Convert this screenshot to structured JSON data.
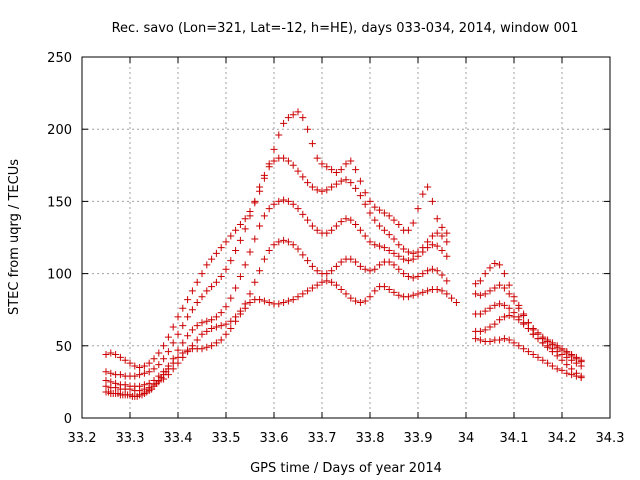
{
  "chart_data": {
    "type": "scatter",
    "title": "Rec. savo (Lon=321, Lat=-12, h=HE), days 033-034, 2014, window 001",
    "xlabel": "GPS time / Days of year 2014",
    "ylabel": "STEC from uqrg / TECUs",
    "xlim": [
      33.2,
      34.3
    ],
    "ylim": [
      0,
      250
    ],
    "x_ticks": [
      33.2,
      33.3,
      33.4,
      33.5,
      33.6,
      33.7,
      33.8,
      33.9,
      34.0,
      34.1,
      34.2,
      34.3
    ],
    "x_tick_labels": [
      "33.2",
      "33.3",
      "33.4",
      "33.5",
      "33.6",
      "33.7",
      "33.8",
      "33.9",
      "34",
      "34.1",
      "34.2",
      "34.3"
    ],
    "y_ticks": [
      0,
      50,
      100,
      150,
      200,
      250
    ],
    "y_tick_labels": [
      "0",
      "50",
      "100",
      "150",
      "200",
      "250"
    ],
    "grid": true,
    "marker": "+",
    "color": "#cc0000",
    "series": [
      {
        "x": [
          33.25,
          33.255,
          33.26,
          33.265,
          33.27,
          33.275,
          33.28,
          33.285,
          33.29,
          33.295,
          33.3,
          33.305,
          33.31,
          33.315,
          33.32,
          33.325,
          33.33,
          33.335,
          33.34,
          33.345,
          33.35,
          33.355,
          33.36,
          33.365,
          33.37,
          33.375,
          33.38,
          33.39,
          33.4,
          33.41,
          33.42,
          33.43,
          33.44,
          33.45,
          33.46,
          33.47,
          33.48,
          33.49,
          33.5,
          33.51,
          33.52,
          33.53,
          33.54,
          33.55,
          33.56,
          33.57,
          33.58,
          33.59,
          33.6,
          33.61,
          33.62,
          33.63,
          33.64,
          33.65,
          33.66,
          33.67,
          33.68,
          33.69,
          33.7,
          33.71,
          33.72,
          33.73,
          33.74,
          33.75,
          33.76,
          33.77,
          33.78,
          33.79,
          33.8,
          33.81,
          33.82,
          33.83,
          33.84,
          33.85,
          33.86,
          33.87,
          33.88,
          33.89,
          33.9,
          33.91,
          33.92,
          33.93,
          33.94,
          33.95,
          33.96,
          33.97,
          33.98,
          34.02,
          34.03,
          34.04,
          34.05,
          34.06,
          34.07,
          34.08,
          34.09,
          34.1,
          34.11,
          34.12,
          34.13,
          34.14,
          34.15,
          34.16,
          34.17,
          34.18,
          34.19,
          34.2,
          34.21,
          34.22,
          34.23,
          34.24
        ],
        "y": [
          18,
          18,
          17,
          17,
          17,
          17,
          16,
          16,
          16,
          16,
          16,
          15,
          15,
          15,
          16,
          16,
          17,
          18,
          19,
          20,
          22,
          24,
          26,
          28,
          30,
          32,
          34,
          38,
          42,
          45,
          47,
          48,
          48,
          48,
          49,
          50,
          52,
          54,
          58,
          62,
          67,
          72,
          76,
          80,
          82,
          82,
          81,
          80,
          79,
          79,
          80,
          81,
          82,
          84,
          86,
          88,
          90,
          92,
          94,
          95,
          94,
          92,
          89,
          86,
          83,
          81,
          80,
          81,
          84,
          88,
          91,
          91,
          89,
          87,
          85,
          84,
          84,
          85,
          86,
          87,
          88,
          89,
          89,
          88,
          86,
          83,
          80,
          55,
          54,
          53,
          53,
          54,
          54,
          55,
          54,
          52,
          50,
          48,
          46,
          44,
          42,
          40,
          38,
          36,
          34,
          33,
          31,
          30,
          29,
          28
        ]
      },
      {
        "x": [
          33.25,
          33.26,
          33.27,
          33.28,
          33.29,
          33.3,
          33.31,
          33.32,
          33.33,
          33.34,
          33.35,
          33.36,
          33.37,
          33.38,
          33.39,
          33.4,
          33.41,
          33.42,
          33.43,
          33.44,
          33.45,
          33.46,
          33.47,
          33.48,
          33.49,
          33.5,
          33.51,
          33.52,
          33.53,
          33.54,
          33.55,
          33.56,
          33.57,
          33.58,
          33.59,
          33.6,
          33.61,
          33.62,
          33.63,
          33.64,
          33.65,
          33.66,
          33.67,
          33.68,
          33.69,
          33.7,
          33.71,
          33.72,
          33.73,
          33.74,
          33.75,
          33.76,
          33.77,
          33.78,
          33.79,
          33.8,
          33.81,
          33.82,
          33.83,
          33.84,
          33.85,
          33.86,
          33.87,
          33.88,
          33.89,
          33.9,
          33.91,
          33.92,
          33.93,
          33.94,
          33.95,
          33.96,
          34.02,
          34.03,
          34.04,
          34.05,
          34.06,
          34.07,
          34.08,
          34.09,
          34.1,
          34.11,
          34.12,
          34.13,
          34.14,
          34.15,
          34.16,
          34.17,
          34.18,
          34.19,
          34.2,
          34.21,
          34.22,
          34.23,
          34.24
        ],
        "y": [
          22,
          21,
          21,
          20,
          20,
          20,
          19,
          19,
          20,
          21,
          23,
          25,
          27,
          30,
          34,
          38,
          42,
          46,
          50,
          54,
          58,
          60,
          62,
          63,
          64,
          65,
          67,
          70,
          74,
          79,
          86,
          94,
          102,
          110,
          116,
          120,
          122,
          123,
          122,
          120,
          117,
          113,
          109,
          105,
          102,
          100,
          100,
          102,
          105,
          108,
          110,
          110,
          108,
          105,
          103,
          102,
          103,
          106,
          108,
          108,
          106,
          103,
          100,
          98,
          97,
          98,
          100,
          102,
          103,
          102,
          99,
          95,
          60,
          60,
          61,
          63,
          65,
          68,
          70,
          71,
          70,
          68,
          65,
          62,
          58,
          55,
          52,
          49,
          46,
          43,
          40,
          37,
          34,
          31,
          29
        ]
      },
      {
        "x": [
          33.25,
          33.26,
          33.27,
          33.28,
          33.29,
          33.3,
          33.31,
          33.32,
          33.33,
          33.34,
          33.35,
          33.36,
          33.37,
          33.38,
          33.39,
          33.4,
          33.41,
          33.42,
          33.43,
          33.44,
          33.45,
          33.46,
          33.47,
          33.48,
          33.49,
          33.5,
          33.51,
          33.52,
          33.53,
          33.54,
          33.55,
          33.56,
          33.57,
          33.58,
          33.59,
          33.6,
          33.61,
          33.62,
          33.63,
          33.64,
          33.65,
          33.66,
          33.67,
          33.68,
          33.69,
          33.7,
          33.71,
          33.72,
          33.73,
          33.74,
          33.75,
          33.76,
          33.77,
          33.78,
          33.79,
          33.8,
          33.81,
          33.82,
          33.83,
          33.84,
          33.85,
          33.86,
          33.87,
          33.88,
          33.89,
          33.9,
          33.91,
          33.92,
          33.93,
          33.94,
          33.95,
          33.96,
          34.02,
          34.03,
          34.04,
          34.05,
          34.06,
          34.07,
          34.08,
          34.09,
          34.1,
          34.11,
          34.12,
          34.13,
          34.14,
          34.15,
          34.16,
          34.17,
          34.18,
          34.19,
          34.2,
          34.21,
          34.22,
          34.23,
          34.24
        ],
        "y": [
          26,
          25,
          24,
          23,
          23,
          22,
          22,
          22,
          23,
          24,
          26,
          29,
          32,
          36,
          41,
          47,
          52,
          57,
          61,
          64,
          66,
          67,
          68,
          70,
          73,
          77,
          83,
          90,
          98,
          106,
          115,
          124,
          133,
          140,
          145,
          148,
          150,
          151,
          150,
          148,
          145,
          141,
          137,
          133,
          130,
          128,
          128,
          130,
          133,
          136,
          138,
          137,
          134,
          130,
          126,
          122,
          120,
          119,
          118,
          116,
          114,
          112,
          110,
          109,
          110,
          112,
          115,
          118,
          120,
          119,
          116,
          112,
          72,
          72,
          74,
          76,
          78,
          79,
          78,
          76,
          73,
          70,
          66,
          62,
          58,
          55,
          52,
          50,
          48,
          46,
          44,
          42,
          40,
          38,
          36
        ]
      },
      {
        "x": [
          33.25,
          33.26,
          33.27,
          33.28,
          33.29,
          33.3,
          33.31,
          33.32,
          33.33,
          33.34,
          33.35,
          33.36,
          33.37,
          33.38,
          33.39,
          33.4,
          33.41,
          33.42,
          33.43,
          33.44,
          33.45,
          33.46,
          33.47,
          33.48,
          33.49,
          33.5,
          33.51,
          33.52,
          33.53,
          33.54,
          33.55,
          33.56,
          33.57,
          33.58,
          33.59,
          33.6,
          33.61,
          33.62,
          33.63,
          33.64,
          33.65,
          33.66,
          33.67,
          33.68,
          33.69,
          33.7,
          33.71,
          33.72,
          33.73,
          33.74,
          33.75,
          33.76,
          33.77,
          33.78,
          33.79,
          33.8,
          33.81,
          33.82,
          33.83,
          33.84,
          33.85,
          33.86,
          33.87,
          33.88,
          33.89,
          33.9,
          33.91,
          33.92,
          33.93,
          33.94,
          33.95,
          33.96,
          34.02,
          34.03,
          34.04,
          34.05,
          34.06,
          34.07,
          34.08,
          34.09,
          34.1,
          34.11,
          34.12,
          34.13,
          34.14,
          34.15,
          34.16,
          34.17,
          34.18,
          34.19,
          34.2,
          34.21,
          34.22,
          34.23,
          34.24
        ],
        "y": [
          32,
          31,
          30,
          30,
          29,
          29,
          29,
          30,
          31,
          32,
          34,
          37,
          41,
          46,
          52,
          58,
          64,
          70,
          75,
          80,
          84,
          88,
          91,
          94,
          98,
          103,
          109,
          116,
          123,
          131,
          140,
          150,
          160,
          168,
          174,
          178,
          180,
          180,
          178,
          175,
          171,
          167,
          163,
          160,
          158,
          157,
          158,
          160,
          162,
          164,
          165,
          163,
          159,
          154,
          148,
          142,
          137,
          133,
          130,
          127,
          124,
          120,
          117,
          115,
          114,
          115,
          118,
          122,
          126,
          128,
          126,
          122,
          86,
          85,
          86,
          88,
          90,
          92,
          90,
          86,
          81,
          76,
          71,
          66,
          62,
          59,
          56,
          54,
          52,
          50,
          48,
          46,
          44,
          42,
          40
        ]
      },
      {
        "x": [
          33.25,
          33.26,
          33.27,
          33.28,
          33.29,
          33.3,
          33.31,
          33.32,
          33.33,
          33.34,
          33.35,
          33.36,
          33.37,
          33.38,
          33.39,
          33.4,
          33.41,
          33.42,
          33.43,
          33.44,
          33.45,
          33.46,
          33.47,
          33.48,
          33.49,
          33.5,
          33.51,
          33.52,
          33.53,
          33.54,
          33.55,
          33.56,
          33.57,
          33.58,
          33.59,
          33.6,
          33.61,
          33.62,
          33.63,
          33.64,
          33.65,
          33.66,
          33.67,
          33.68,
          33.69,
          33.7,
          33.71,
          33.72,
          33.73,
          33.74,
          33.75,
          33.76,
          33.77,
          33.78,
          33.79,
          33.8,
          33.81,
          33.82,
          33.83,
          33.84,
          33.85,
          33.86,
          33.87,
          33.88,
          33.89,
          33.9,
          33.91,
          33.92,
          33.93,
          33.94,
          33.95,
          33.96,
          34.02,
          34.03,
          34.04,
          34.05,
          34.06,
          34.07,
          34.08,
          34.09,
          34.1,
          34.11,
          34.12,
          34.13,
          34.14,
          34.15,
          34.16,
          34.17,
          34.18,
          34.19,
          34.2,
          34.21,
          34.22,
          34.23,
          34.24
        ],
        "y": [
          44,
          45,
          44,
          42,
          40,
          38,
          36,
          35,
          36,
          38,
          41,
          45,
          50,
          56,
          63,
          70,
          76,
          82,
          88,
          94,
          100,
          106,
          110,
          114,
          118,
          122,
          126,
          130,
          134,
          138,
          143,
          149,
          157,
          166,
          176,
          186,
          196,
          204,
          208,
          210,
          212,
          208,
          200,
          190,
          180,
          176,
          174,
          172,
          170,
          172,
          176,
          178,
          172,
          164,
          156,
          150,
          146,
          144,
          142,
          140,
          137,
          134,
          130,
          130,
          135,
          145,
          155,
          160,
          150,
          138,
          132,
          128,
          93,
          95,
          100,
          104,
          107,
          106,
          100,
          92,
          84,
          78,
          72,
          66,
          61,
          58,
          55,
          53,
          51,
          49,
          47,
          45,
          43,
          41,
          39
        ]
      }
    ]
  }
}
